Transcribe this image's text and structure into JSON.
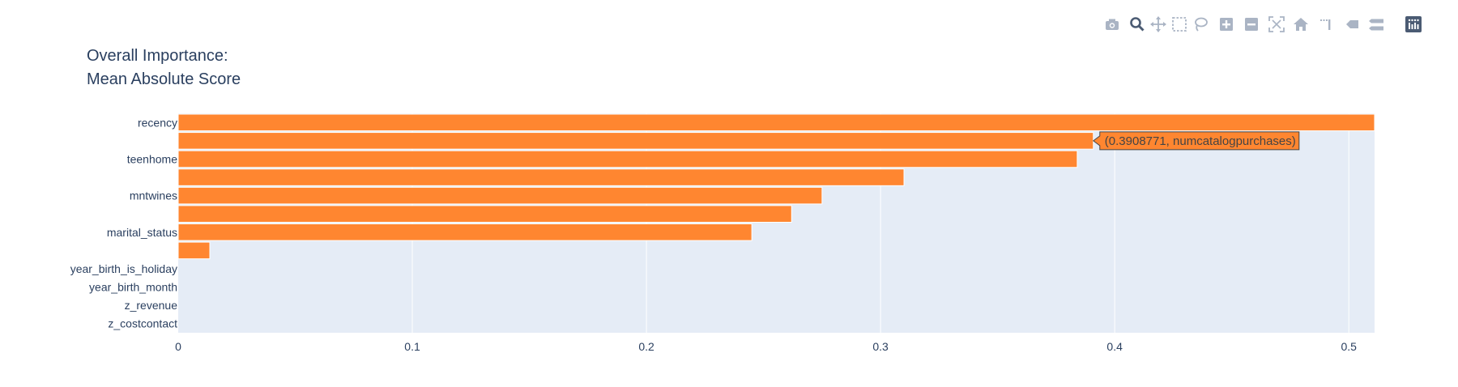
{
  "modebar": {
    "buttons": [
      {
        "name": "download-plot-button",
        "icon": "camera-icon"
      },
      {
        "name": "zoom-button",
        "icon": "magnifier-icon",
        "active": true
      },
      {
        "name": "pan-button",
        "icon": "move-arrows-icon"
      },
      {
        "name": "box-select-button",
        "icon": "dashed-box-icon"
      },
      {
        "name": "lasso-select-button",
        "icon": "lasso-icon"
      },
      {
        "name": "zoom-in-button",
        "icon": "plus-square-icon"
      },
      {
        "name": "zoom-out-button",
        "icon": "minus-square-icon"
      },
      {
        "name": "autoscale-button",
        "icon": "autoscale-icon"
      },
      {
        "name": "reset-axes-button",
        "icon": "home-icon"
      },
      {
        "name": "toggle-spike-lines-button",
        "icon": "spikelines-icon"
      },
      {
        "name": "hover-closest-button",
        "icon": "hover-closest-icon"
      },
      {
        "name": "hover-compare-button",
        "icon": "hover-compare-icon"
      },
      {
        "name": "plotly-logo-button",
        "icon": "plotly-logo-icon"
      }
    ]
  },
  "colors": {
    "bar": "#ff8630",
    "bar_edge": "#ffffff",
    "plot_bg": "#e5ecf6",
    "grid": "#ffffff",
    "text": "#2a3f5f",
    "modebar_icon": "#aab4c4",
    "modebar_active": "#4b5b73",
    "hover_border": "#444444",
    "logo": "#4b5b73"
  },
  "chart_data": {
    "type": "bar",
    "orientation": "horizontal",
    "title": [
      "Overall Importance:",
      "Mean Absolute Score"
    ],
    "categories": [
      "recency",
      "",
      "teenhome",
      "",
      "mntwines",
      "",
      "marital_status",
      "",
      "year_birth_is_holiday",
      "year_birth_month",
      "z_revenue",
      "z_costcontact"
    ],
    "values": [
      0.511,
      0.3908771,
      0.384,
      0.31,
      0.275,
      0.262,
      0.245,
      0.0135,
      0,
      0,
      0,
      0
    ],
    "xlim": [
      0,
      0.511
    ],
    "xticks": [
      0,
      0.1,
      0.2,
      0.3,
      0.4,
      0.5
    ],
    "xtick_labels": [
      "0",
      "0.1",
      "0.2",
      "0.3",
      "0.4",
      "0.5"
    ],
    "ytick_labels": [
      "recency",
      "teenhome",
      "mntwines",
      "marital_status",
      "year_birth_is_holiday",
      "year_birth_month",
      "z_revenue",
      "z_costcontact"
    ],
    "xlabel": "",
    "ylabel": "",
    "grid": true,
    "hover": {
      "bar_index": 1,
      "text": "(0.3908771, numcatalogpurchases)"
    }
  }
}
